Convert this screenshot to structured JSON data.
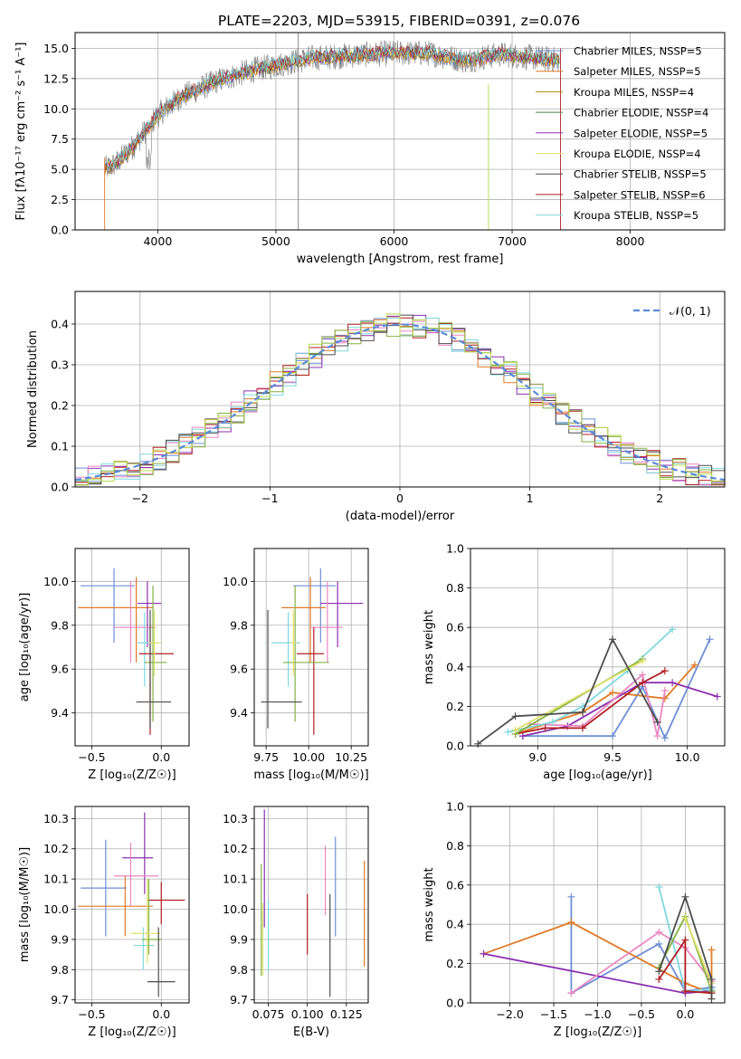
{
  "figure_title": "PLATE=2203, MJD=53915, FIBERID=0391, z=0.076",
  "series_colors": [
    "#6d8fd6",
    "#e07b27",
    "#8b30b0",
    "#c7a5d8",
    "#ea86c0",
    "#b6d84d",
    "#7e7e7e",
    "#b01f24",
    "#7fd8de",
    "#4d4d4d",
    "#83b140",
    "#e2e26d"
  ],
  "chart_data": [
    {
      "type": "line",
      "panel": "spectrum",
      "title": "PLATE=2203, MJD=53915, FIBERID=0391, z=0.076",
      "xlabel": "wavelength [Angstrom, rest frame]",
      "ylabel": "Flux [fλ10⁻¹⁷ erg cm⁻² s⁻¹ A⁻¹]",
      "xlim": [
        3300,
        8800
      ],
      "ylim": [
        0,
        16.3
      ],
      "xticks": [
        "4000",
        "5000",
        "6000",
        "7000",
        "8000"
      ],
      "yticks": [
        "0.0",
        "2.5",
        "5.0",
        "7.5",
        "10.0",
        "12.5",
        "15.0"
      ],
      "legend_position": "upper right",
      "legend": [
        {
          "label": "Chabrier MILES, NSSP=5",
          "color": "#6d8fd6"
        },
        {
          "label": "Salpeter MILES, NSSP=5",
          "color": "#e07b27"
        },
        {
          "label": "Kroupa MILES, NSSP=4",
          "color": "#b8860b"
        },
        {
          "label": "Chabrier ELODIE, NSSP=4",
          "color": "#4f7f4f"
        },
        {
          "label": "Salpeter ELODIE, NSSP=5",
          "color": "#8b30b0"
        },
        {
          "label": "Kroupa ELODIE, NSSP=4",
          "color": "#e2e26d"
        },
        {
          "label": "Chabrier STELIB, NSSP=5",
          "color": "#4d4d4d"
        },
        {
          "label": "Salpeter STELIB, NSSP=6",
          "color": "#b01f24"
        },
        {
          "label": "Kroupa STELIB, NSSP=5",
          "color": "#7fd8de"
        }
      ],
      "continuum": {
        "x": [
          3550,
          3650,
          3800,
          4000,
          4200,
          4500,
          4800,
          5000,
          5300,
          5600,
          6000,
          6300,
          6600,
          6900,
          7200,
          7400
        ],
        "y": [
          5.0,
          5.5,
          7.0,
          9.5,
          11.0,
          12.3,
          13.2,
          13.6,
          14.2,
          14.4,
          14.6,
          14.6,
          14.0,
          14.5,
          14.2,
          14.0
        ]
      }
    },
    {
      "type": "step",
      "panel": "residuals",
      "xlabel": "(data-model)/error",
      "ylabel": "Normed distribution",
      "xlim": [
        -2.5,
        2.5
      ],
      "ylim": [
        0,
        0.48
      ],
      "xticks": [
        "−2",
        "−1",
        "0",
        "1",
        "2"
      ],
      "yticks": [
        "0.0",
        "0.1",
        "0.2",
        "0.3",
        "0.4"
      ],
      "legend_position": "upper right",
      "legend": [
        {
          "label": "𝒩(0, 1)",
          "color": "#5b8bd8",
          "style": "dashed"
        }
      ],
      "gaussian": {
        "mean": 0,
        "sigma": 1
      }
    },
    {
      "type": "errorbar",
      "panel": "age-vs-Z",
      "xlabel": "Z [log₁₀(Z/Z☉)]",
      "ylabel": "age  [log₁₀(age/yr)]",
      "xlim": [
        -0.62,
        0.2
      ],
      "ylim": [
        9.25,
        10.15
      ],
      "xticks": [
        "−0.5",
        "0.0"
      ],
      "yticks": [
        "9.4",
        "9.6",
        "9.8",
        "10.0"
      ],
      "points": [
        {
          "x": -0.34,
          "y": 9.98,
          "xerr": [
            0.24,
            0.15
          ],
          "yerr": [
            0.26,
            0.08
          ],
          "color": "#6d8fd6"
        },
        {
          "x": -0.18,
          "y": 9.88,
          "xerr": [
            0.42,
            0.12
          ],
          "yerr": [
            0.25,
            0.14
          ],
          "color": "#e07b27"
        },
        {
          "x": -0.1,
          "y": 9.9,
          "xerr": [
            0.07,
            0.1
          ],
          "yerr": [
            0.2,
            0.1
          ],
          "color": "#8b30b0"
        },
        {
          "x": -0.22,
          "y": 9.79,
          "xerr": [
            0.12,
            0.18
          ],
          "yerr": [
            0.16,
            0.21
          ],
          "color": "#ea86c0"
        },
        {
          "x": -0.12,
          "y": 9.72,
          "xerr": [
            0.05,
            0.1
          ],
          "yerr": [
            0.2,
            0.14
          ],
          "color": "#7fd8de"
        },
        {
          "x": -0.08,
          "y": 9.67,
          "xerr": [
            0.08,
            0.17
          ],
          "yerr": [
            0.37,
            0.12
          ],
          "color": "#b01f24"
        },
        {
          "x": -0.06,
          "y": 9.63,
          "xerr": [
            0.06,
            0.1
          ],
          "yerr": [
            0.27,
            0.35
          ],
          "color": "#83b140"
        },
        {
          "x": -0.08,
          "y": 9.45,
          "xerr": [
            0.1,
            0.15
          ],
          "yerr": [
            0.12,
            0.42
          ],
          "color": "#4d4d4d"
        },
        {
          "x": -0.05,
          "y": 9.72,
          "xerr": [
            0.04,
            0.05
          ],
          "yerr": [
            0.15,
            0.15
          ],
          "color": "#e2e26d"
        }
      ]
    },
    {
      "type": "errorbar",
      "panel": "age-vs-mass",
      "xlabel": "mass [log₁₀(M/M☉)]",
      "xlim": [
        9.68,
        10.35
      ],
      "ylim": [
        9.25,
        10.15
      ],
      "xticks": [
        "9.75",
        "10.00",
        "10.25"
      ],
      "yticks": [
        "9.4",
        "9.6",
        "9.8",
        "10.0"
      ],
      "points": [
        {
          "x": 10.07,
          "y": 9.98,
          "xerr": [
            0.16,
            0.09
          ],
          "yerr": [
            0.26,
            0.08
          ],
          "color": "#6d8fd6"
        },
        {
          "x": 10.01,
          "y": 9.88,
          "xerr": [
            0.17,
            0.09
          ],
          "yerr": [
            0.25,
            0.14
          ],
          "color": "#e07b27"
        },
        {
          "x": 10.17,
          "y": 9.9,
          "xerr": [
            0.1,
            0.15
          ],
          "yerr": [
            0.2,
            0.1
          ],
          "color": "#8b30b0"
        },
        {
          "x": 10.11,
          "y": 9.79,
          "xerr": [
            0.1,
            0.09
          ],
          "yerr": [
            0.16,
            0.21
          ],
          "color": "#ea86c0"
        },
        {
          "x": 9.88,
          "y": 9.72,
          "xerr": [
            0.1,
            0.07
          ],
          "yerr": [
            0.2,
            0.14
          ],
          "color": "#7fd8de"
        },
        {
          "x": 10.03,
          "y": 9.67,
          "xerr": [
            0.1,
            0.06
          ],
          "yerr": [
            0.37,
            0.12
          ],
          "color": "#b01f24"
        },
        {
          "x": 9.92,
          "y": 9.63,
          "xerr": [
            0.07,
            0.2
          ],
          "yerr": [
            0.27,
            0.35
          ],
          "color": "#83b140"
        },
        {
          "x": 9.76,
          "y": 9.45,
          "xerr": [
            0.04,
            0.2
          ],
          "yerr": [
            0.12,
            0.42
          ],
          "color": "#4d4d4d"
        },
        {
          "x": 9.91,
          "y": 9.72,
          "xerr": [
            0.02,
            0.02
          ],
          "yerr": [
            0.15,
            0.15
          ],
          "color": "#e2e26d"
        }
      ]
    },
    {
      "type": "line",
      "panel": "mass-weight-vs-age",
      "xlabel": "age  [log₁₀(age/yr)]",
      "ylabel": "mass weight",
      "xlim": [
        8.55,
        10.25
      ],
      "ylim": [
        0,
        1
      ],
      "xticks": [
        "9.0",
        "9.5",
        "10.0"
      ],
      "yticks": [
        "0.0",
        "0.2",
        "0.4",
        "0.6",
        "0.8",
        "1.0"
      ],
      "series": [
        {
          "color": "#6d8fd6",
          "x": [
            8.9,
            9.5,
            9.7,
            9.85,
            10.15
          ],
          "y": [
            0.05,
            0.05,
            0.3,
            0.04,
            0.54
          ]
        },
        {
          "color": "#e07b27",
          "x": [
            8.85,
            9.3,
            9.5,
            9.85,
            10.05
          ],
          "y": [
            0.06,
            0.17,
            0.27,
            0.24,
            0.41
          ]
        },
        {
          "color": "#8b30b0",
          "x": [
            8.9,
            9.2,
            9.7,
            9.9,
            10.2
          ],
          "y": [
            0.05,
            0.1,
            0.32,
            0.32,
            0.25
          ]
        },
        {
          "color": "#ea86c0",
          "x": [
            8.95,
            9.3,
            9.7,
            9.8,
            9.85
          ],
          "y": [
            0.11,
            0.1,
            0.36,
            0.05,
            0.28
          ]
        },
        {
          "color": "#7fd8de",
          "x": [
            8.8,
            9.1,
            9.3,
            9.6,
            9.9
          ],
          "y": [
            0.07,
            0.12,
            0.2,
            0.38,
            0.59
          ]
        },
        {
          "color": "#b01f24",
          "x": [
            8.85,
            9.05,
            9.3,
            9.7,
            9.85
          ],
          "y": [
            0.06,
            0.09,
            0.09,
            0.32,
            0.38
          ]
        },
        {
          "color": "#83b140",
          "x": [
            8.85,
            9.7
          ],
          "y": [
            0.06,
            0.44
          ]
        },
        {
          "color": "#e2e26d",
          "x": [
            8.85,
            9.7
          ],
          "y": [
            0.08,
            0.43
          ]
        },
        {
          "color": "#4d4d4d",
          "x": [
            8.6,
            8.85,
            9.3,
            9.5,
            9.8
          ],
          "y": [
            0.01,
            0.15,
            0.17,
            0.54,
            0.12
          ]
        }
      ]
    },
    {
      "type": "errorbar",
      "panel": "mass-vs-Z",
      "xlabel": "Z [log₁₀(Z/Z☉)]",
      "ylabel": "mass [log₁₀(M/M☉)]",
      "xlim": [
        -0.62,
        0.2
      ],
      "ylim": [
        9.69,
        10.34
      ],
      "xticks": [
        "−0.5",
        "0.0"
      ],
      "yticks": [
        "9.7",
        "9.8",
        "9.9",
        "10.0",
        "10.1",
        "10.2",
        "10.3"
      ],
      "points": [
        {
          "x": -0.4,
          "y": 10.07,
          "xerr": [
            0.18,
            0.15
          ],
          "yerr": [
            0.16,
            0.16
          ],
          "color": "#6d8fd6"
        },
        {
          "x": -0.26,
          "y": 10.01,
          "xerr": [
            0.34,
            0.2
          ],
          "yerr": [
            0.1,
            0.1
          ],
          "color": "#e07b27"
        },
        {
          "x": -0.12,
          "y": 10.17,
          "xerr": [
            0.16,
            0.06
          ],
          "yerr": [
            0.12,
            0.15
          ],
          "color": "#8b30b0"
        },
        {
          "x": -0.22,
          "y": 10.11,
          "xerr": [
            0.12,
            0.2
          ],
          "yerr": [
            0.1,
            0.11
          ],
          "color": "#ea86c0"
        },
        {
          "x": -0.13,
          "y": 9.88,
          "xerr": [
            0.07,
            0.08
          ],
          "yerr": [
            0.08,
            0.06
          ],
          "color": "#7fd8de"
        },
        {
          "x": 0.0,
          "y": 10.03,
          "xerr": [
            0.1,
            0.17
          ],
          "yerr": [
            0.08,
            0.06
          ],
          "color": "#b01f24"
        },
        {
          "x": -0.09,
          "y": 9.9,
          "xerr": [
            0.05,
            0.09
          ],
          "yerr": [
            0.05,
            0.2
          ],
          "color": "#83b140"
        },
        {
          "x": -0.1,
          "y": 9.92,
          "xerr": [
            0.12,
            0.09
          ],
          "yerr": [
            0.1,
            0.18
          ],
          "color": "#e2e26d"
        },
        {
          "x": -0.02,
          "y": 9.76,
          "xerr": [
            0.08,
            0.12
          ],
          "yerr": [
            0.05,
            0.18
          ],
          "color": "#4d4d4d"
        }
      ]
    },
    {
      "type": "errorbar",
      "panel": "mass-vs-EBV",
      "xlabel": "E(B-V)",
      "xlim": [
        0.066,
        0.139
      ],
      "ylim": [
        9.69,
        10.34
      ],
      "xticks": [
        "0.075",
        "0.100",
        "0.125"
      ],
      "yticks": [
        "9.7",
        "9.8",
        "9.9",
        "10.0",
        "10.1",
        "10.2",
        "10.3"
      ],
      "points": [
        {
          "x": 0.118,
          "y": 10.07,
          "yerr": [
            0.16,
            0.17
          ],
          "color": "#6d8fd6"
        },
        {
          "x": 0.1365,
          "y": 9.98,
          "yerr": [
            0.17,
            0.18
          ],
          "color": "#e07b27"
        },
        {
          "x": 0.0725,
          "y": 10.16,
          "yerr": [
            0.22,
            0.17
          ],
          "color": "#8b30b0"
        },
        {
          "x": 0.1115,
          "y": 10.08,
          "yerr": [
            0.1,
            0.13
          ],
          "color": "#ea86c0"
        },
        {
          "x": 0.075,
          "y": 9.89,
          "yerr": [
            0.1,
            0.14
          ],
          "color": "#7fd8de"
        },
        {
          "x": 0.1,
          "y": 9.95,
          "yerr": [
            0.1,
            0.1
          ],
          "color": "#b01f24"
        },
        {
          "x": 0.0705,
          "y": 9.95,
          "yerr": [
            0.17,
            0.2
          ],
          "color": "#83b140"
        },
        {
          "x": 0.0715,
          "y": 9.9,
          "yerr": [
            0.12,
            0.12
          ],
          "color": "#e2e26d"
        },
        {
          "x": 0.1145,
          "y": 9.86,
          "yerr": [
            0.15,
            0.19
          ],
          "color": "#4d4d4d"
        }
      ]
    },
    {
      "type": "line",
      "panel": "mass-weight-vs-Z",
      "xlabel": "Z [log₁₀(Z/Z☉)]",
      "ylabel": "mass weight",
      "xlim": [
        -2.45,
        0.45
      ],
      "ylim": [
        0,
        1
      ],
      "xticks": [
        "−2.0",
        "−1.5",
        "−1.0",
        "−0.5",
        "0.0"
      ],
      "yticks": [
        "0.0",
        "0.2",
        "0.4",
        "0.6",
        "0.8",
        "1.0"
      ],
      "series": [
        {
          "color": "#6d8fd6",
          "x": [
            -1.3,
            -1.3,
            -0.3,
            0.0,
            0.3
          ],
          "y": [
            0.54,
            0.05,
            0.3,
            0.06,
            0.08
          ]
        },
        {
          "color": "#e07b27",
          "x": [
            -2.3,
            -1.3,
            0.0,
            0.3,
            0.3
          ],
          "y": [
            0.25,
            0.41,
            0.1,
            0.05,
            0.27
          ]
        },
        {
          "color": "#8b30b0",
          "x": [
            -2.3,
            0.0,
            0.3
          ],
          "y": [
            0.25,
            0.05,
            0.06
          ]
        },
        {
          "color": "#ea86c0",
          "x": [
            -1.3,
            -0.3,
            0.0,
            0.3
          ],
          "y": [
            0.05,
            0.36,
            0.28,
            0.11
          ]
        },
        {
          "color": "#7fd8de",
          "x": [
            -0.3,
            0.0,
            0.3
          ],
          "y": [
            0.59,
            0.06,
            0.07
          ]
        },
        {
          "color": "#b01f24",
          "x": [
            -0.3,
            0.0,
            0.0,
            0.3
          ],
          "y": [
            0.12,
            0.32,
            0.06,
            0.05
          ]
        },
        {
          "color": "#83b140",
          "x": [
            -0.3,
            0.0,
            0.3
          ],
          "y": [
            0.18,
            0.44,
            0.06
          ]
        },
        {
          "color": "#e2e26d",
          "x": [
            0.0,
            0.3
          ],
          "y": [
            0.43,
            0.1
          ]
        },
        {
          "color": "#4d4d4d",
          "x": [
            -0.3,
            0.0,
            0.3,
            0.3
          ],
          "y": [
            0.16,
            0.54,
            0.12,
            0.02
          ]
        }
      ]
    }
  ]
}
